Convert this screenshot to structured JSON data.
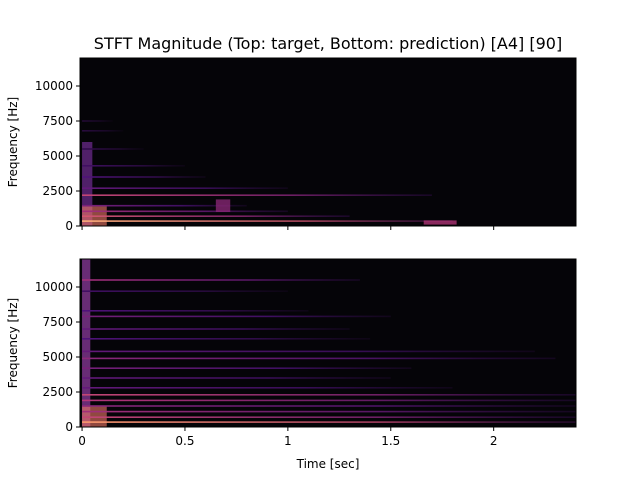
{
  "chart_data": {
    "type": "heatmap",
    "title": "STFT Magnitude (Top: target, Bottom: prediction) [A4] [90]",
    "xlabel": "Time [sec]",
    "xlim": [
      -0.01,
      2.4
    ],
    "x_ticks": [
      0,
      0.5,
      1,
      1.5,
      2
    ],
    "x_tick_labels": [
      "0",
      "0.5",
      "1",
      "1.5",
      "2"
    ],
    "background_color": "#050408",
    "subplots": [
      {
        "name": "target",
        "ylabel": "Frequency [Hz]",
        "ylim": [
          0,
          12000
        ],
        "y_ticks": [
          0,
          2500,
          5000,
          7500,
          10000
        ],
        "y_tick_labels": [
          "0",
          "2500",
          "5000",
          "7500",
          "10000"
        ],
        "show_x_tick_labels": false,
        "onset_column": {
          "t0": 0.0,
          "t1": 0.05,
          "f_max": 6000,
          "color": "#6a2a8a"
        },
        "harmonics": [
          {
            "freq": 350,
            "t_end": 1.8,
            "intensity": 0.85
          },
          {
            "freq": 700,
            "t_end": 1.3,
            "intensity": 0.6
          },
          {
            "freq": 1050,
            "t_end": 1.0,
            "intensity": 0.45
          },
          {
            "freq": 1450,
            "t_end": 0.8,
            "intensity": 0.35
          },
          {
            "freq": 2200,
            "t_end": 1.7,
            "intensity": 0.55
          },
          {
            "freq": 2700,
            "t_end": 1.0,
            "intensity": 0.3
          },
          {
            "freq": 3500,
            "t_end": 0.6,
            "intensity": 0.25
          },
          {
            "freq": 4300,
            "t_end": 0.5,
            "intensity": 0.2
          },
          {
            "freq": 5500,
            "t_end": 0.3,
            "intensity": 0.15
          },
          {
            "freq": 6800,
            "t_end": 0.2,
            "intensity": 0.12
          },
          {
            "freq": 7500,
            "t_end": 0.15,
            "intensity": 0.1
          }
        ],
        "blobs": [
          {
            "t0": 0.65,
            "t1": 0.72,
            "f0": 1000,
            "f1": 1900,
            "intensity": 0.4
          },
          {
            "t0": 1.66,
            "t1": 1.82,
            "f0": 100,
            "f1": 400,
            "intensity": 0.5
          }
        ]
      },
      {
        "name": "prediction",
        "ylabel": "Frequency [Hz]",
        "ylim": [
          0,
          12000
        ],
        "y_ticks": [
          0,
          2500,
          5000,
          7500,
          10000
        ],
        "y_tick_labels": [
          "0",
          "2500",
          "5000",
          "7500",
          "10000"
        ],
        "show_x_tick_labels": true,
        "onset_column": {
          "t0": 0.0,
          "t1": 0.04,
          "f_max": 12000,
          "color": "#8a3a9a"
        },
        "harmonics": [
          {
            "freq": 350,
            "t_end": 2.4,
            "intensity": 0.8
          },
          {
            "freq": 700,
            "t_end": 2.4,
            "intensity": 0.55
          },
          {
            "freq": 1100,
            "t_end": 2.4,
            "intensity": 0.45
          },
          {
            "freq": 1500,
            "t_end": 2.4,
            "intensity": 0.4
          },
          {
            "freq": 1900,
            "t_end": 2.4,
            "intensity": 0.5
          },
          {
            "freq": 2300,
            "t_end": 2.4,
            "intensity": 0.55
          },
          {
            "freq": 2800,
            "t_end": 1.8,
            "intensity": 0.3
          },
          {
            "freq": 3500,
            "t_end": 1.5,
            "intensity": 0.3
          },
          {
            "freq": 4200,
            "t_end": 1.6,
            "intensity": 0.35
          },
          {
            "freq": 4900,
            "t_end": 2.3,
            "intensity": 0.4
          },
          {
            "freq": 5400,
            "t_end": 2.2,
            "intensity": 0.3
          },
          {
            "freq": 6300,
            "t_end": 1.4,
            "intensity": 0.25
          },
          {
            "freq": 7000,
            "t_end": 1.3,
            "intensity": 0.3
          },
          {
            "freq": 7900,
            "t_end": 1.5,
            "intensity": 0.35
          },
          {
            "freq": 8300,
            "t_end": 1.1,
            "intensity": 0.25
          },
          {
            "freq": 9700,
            "t_end": 1.0,
            "intensity": 0.2
          },
          {
            "freq": 10500,
            "t_end": 1.35,
            "intensity": 0.45
          }
        ],
        "blobs": []
      }
    ]
  }
}
